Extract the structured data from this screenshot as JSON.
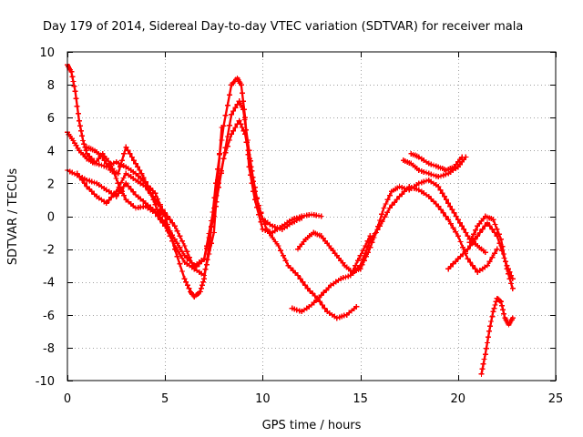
{
  "chart_data": {
    "type": "scatter",
    "title": "Day 179 of 2014, Sidereal Day-to-day VTEC variation (SDTVAR) for receiver mala",
    "xlabel": "GPS time / hours",
    "ylabel": "SDTVAR / TECUs",
    "xlim": [
      0,
      25
    ],
    "ylim": [
      -10,
      10
    ],
    "xticks": [
      0,
      5,
      10,
      15,
      20,
      25
    ],
    "yticks": [
      -10,
      -8,
      -6,
      -4,
      -2,
      0,
      2,
      4,
      6,
      8,
      10
    ],
    "xtick_labels": [
      "0",
      "5",
      "10",
      "15",
      "20",
      "25"
    ],
    "ytick_labels": [
      "-10",
      "-8",
      "-6",
      "-4",
      "-2",
      "0",
      "2",
      "4",
      "6",
      "8",
      "10"
    ],
    "grid": true,
    "marker": "+",
    "color": "#ff0000",
    "series": [
      {
        "name": "trace-1",
        "x": [
          0.0,
          0.2,
          0.4,
          0.6,
          0.8,
          1.0,
          1.5,
          2.0,
          2.5,
          3.0,
          3.5,
          4.0,
          4.5,
          5.0,
          5.5,
          6.0,
          6.3,
          6.5,
          6.8,
          7.0,
          7.3,
          7.6,
          8.0,
          8.4,
          8.7,
          8.9,
          9.1,
          9.3,
          9.6,
          10.0,
          10.5,
          11.0,
          11.5,
          12.0,
          12.5,
          13.0
        ],
        "y": [
          9.2,
          8.8,
          7.6,
          5.8,
          4.6,
          3.8,
          3.2,
          3.0,
          3.3,
          3.0,
          2.6,
          2.0,
          1.4,
          0.0,
          -2.0,
          -3.8,
          -4.6,
          -4.9,
          -4.6,
          -3.8,
          -1.5,
          2.0,
          5.5,
          8.0,
          8.4,
          8.0,
          6.0,
          3.0,
          1.0,
          -0.8,
          -1.0,
          -0.6,
          -0.2,
          0.0,
          0.1,
          0.0
        ]
      },
      {
        "name": "trace-2",
        "x": [
          0.0,
          0.3,
          0.6,
          1.0,
          1.4,
          1.8,
          2.2,
          2.6,
          3.0,
          3.5,
          4.0,
          4.5,
          5.0,
          5.5,
          6.0,
          6.5,
          7.0,
          7.5,
          8.0,
          8.4,
          8.8,
          9.0,
          9.3,
          9.6,
          10.0,
          10.5,
          11.0,
          11.5,
          12.0
        ],
        "y": [
          5.1,
          4.6,
          4.0,
          3.5,
          3.2,
          3.8,
          3.2,
          2.0,
          1.0,
          0.5,
          0.6,
          0.2,
          -0.6,
          -1.8,
          -2.8,
          -3.2,
          -2.6,
          0.0,
          3.5,
          6.2,
          7.0,
          6.5,
          4.0,
          1.5,
          -0.2,
          -0.6,
          -0.8,
          -0.4,
          -0.1
        ]
      },
      {
        "name": "trace-3",
        "x": [
          0.0,
          0.5,
          1.0,
          1.5,
          2.0,
          2.5,
          3.0,
          3.5,
          4.0,
          4.5,
          5.0,
          5.5,
          6.0,
          6.5,
          7.0,
          7.5,
          8.0,
          8.4,
          8.8,
          9.1,
          9.4,
          9.8,
          10.2,
          10.8,
          11.3,
          11.8,
          12.3,
          12.8,
          13.3,
          13.8,
          14.3,
          14.8
        ],
        "y": [
          2.8,
          2.5,
          2.2,
          2.0,
          1.6,
          1.2,
          2.0,
          1.3,
          0.8,
          0.3,
          -0.4,
          -1.4,
          -2.4,
          -3.0,
          -2.6,
          0.5,
          3.5,
          5.0,
          5.8,
          5.0,
          3.0,
          0.5,
          -0.8,
          -1.8,
          -3.0,
          -3.6,
          -4.4,
          -5.0,
          -5.8,
          -6.2,
          -6.0,
          -5.5
        ]
      },
      {
        "name": "trace-4",
        "x": [
          0.5,
          1.0,
          1.5,
          2.0,
          2.5,
          3.0,
          3.5,
          4.0,
          4.5,
          5.0,
          5.5,
          6.0,
          6.5,
          7.0,
          7.5,
          7.9
        ],
        "y": [
          2.6,
          1.8,
          1.2,
          0.8,
          1.5,
          2.6,
          2.2,
          1.8,
          1.0,
          0.2,
          -0.6,
          -1.8,
          -3.2,
          -3.6,
          -1.0,
          5.4
        ]
      },
      {
        "name": "trace-5",
        "x": [
          1.0,
          1.4,
          1.8,
          2.2,
          2.6,
          3.0,
          3.4,
          3.8,
          4.2,
          4.6,
          5.0
        ],
        "y": [
          4.2,
          4.0,
          3.6,
          2.8,
          2.6,
          4.2,
          3.4,
          2.6,
          1.6,
          0.4,
          0.0
        ]
      },
      {
        "name": "trace-6",
        "x": [
          11.8,
          12.2,
          12.6,
          13.0,
          13.4,
          13.8,
          14.2,
          14.6,
          15.0,
          15.4,
          15.8,
          16.2,
          16.6,
          17.0,
          17.5,
          18.0,
          18.5,
          19.0,
          19.4,
          19.8,
          20.2,
          20.6,
          21.0,
          21.4
        ],
        "y": [
          -2.0,
          -1.4,
          -1.0,
          -1.2,
          -1.8,
          -2.4,
          -3.0,
          -3.4,
          -3.2,
          -2.2,
          -1.0,
          0.5,
          1.5,
          1.8,
          1.6,
          2.0,
          2.2,
          1.8,
          1.0,
          0.2,
          -0.6,
          -1.4,
          -1.8,
          -2.2
        ]
      },
      {
        "name": "trace-7",
        "x": [
          14.5,
          15.0,
          15.5,
          16.0,
          16.5,
          17.0,
          17.5,
          18.0,
          18.5,
          19.0,
          19.5,
          20.0,
          20.5,
          21.0,
          21.5,
          22.0
        ],
        "y": [
          -3.6,
          -3.0,
          -1.5,
          -0.6,
          0.5,
          1.2,
          1.8,
          1.6,
          1.2,
          0.6,
          -0.2,
          -1.2,
          -2.6,
          -3.4,
          -3.0,
          -2.0
        ]
      },
      {
        "name": "trace-8",
        "x": [
          17.6,
          18.0,
          18.5,
          19.0,
          19.4,
          19.8,
          20.2
        ],
        "y": [
          3.8,
          3.6,
          3.2,
          3.0,
          2.8,
          3.0,
          3.6
        ]
      },
      {
        "name": "trace-9",
        "x": [
          17.2,
          17.6,
          18.0,
          18.5,
          19.0,
          19.5,
          20.0,
          20.4
        ],
        "y": [
          3.4,
          3.2,
          2.8,
          2.6,
          2.4,
          2.6,
          3.0,
          3.6
        ]
      },
      {
        "name": "trace-10",
        "x": [
          19.5,
          20.0,
          20.5,
          21.0,
          21.5,
          22.0,
          22.5,
          22.8
        ],
        "y": [
          -3.2,
          -2.6,
          -2.0,
          -1.2,
          -0.4,
          -1.2,
          -3.0,
          -3.8
        ]
      },
      {
        "name": "trace-11",
        "x": [
          20.6,
          21.0,
          21.4,
          21.8,
          22.2,
          22.5,
          22.8
        ],
        "y": [
          -1.6,
          -0.6,
          0.0,
          -0.2,
          -1.4,
          -3.2,
          -4.4
        ]
      },
      {
        "name": "trace-12",
        "x": [
          21.2,
          21.4,
          21.6,
          21.8,
          22.0,
          22.2,
          22.4,
          22.6,
          22.8
        ],
        "y": [
          -9.6,
          -8.4,
          -7.0,
          -5.8,
          -5.0,
          -5.2,
          -6.2,
          -6.6,
          -6.2
        ]
      },
      {
        "name": "trace-13",
        "x": [
          11.5,
          12.0,
          12.5,
          13.0,
          13.5,
          14.0,
          14.5,
          15.0,
          15.5
        ],
        "y": [
          -5.6,
          -5.8,
          -5.4,
          -4.8,
          -4.2,
          -3.8,
          -3.6,
          -2.4,
          -1.2
        ]
      }
    ]
  }
}
